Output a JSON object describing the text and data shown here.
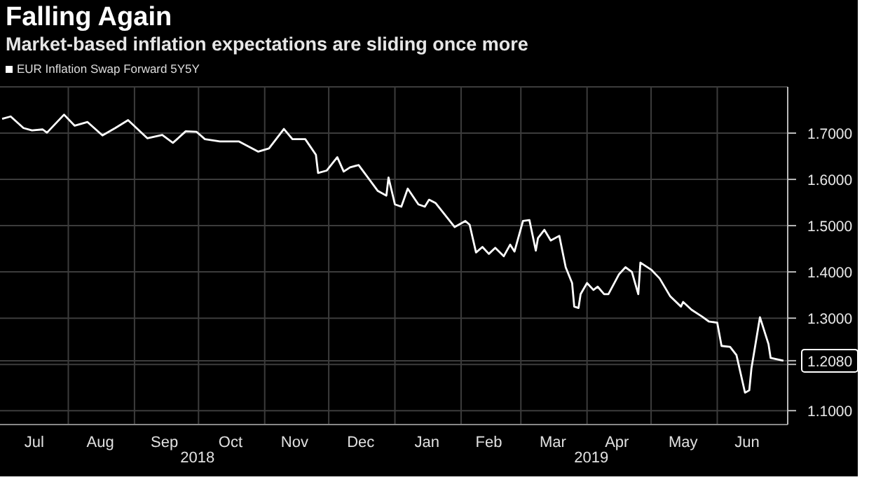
{
  "chart_data": {
    "type": "line",
    "title": "Falling Again",
    "subtitle": "Market-based inflation expectations are sliding once more",
    "legend": "top left",
    "grid": true,
    "xlim": [
      "2018-06-30",
      "2019-07-04"
    ],
    "xticks": [
      {
        "value": "2018-07-16",
        "label": "Jul"
      },
      {
        "value": "2018-08-01",
        "label": null
      },
      {
        "value": "2018-08-16",
        "label": "Aug"
      },
      {
        "value": "2018-09-01",
        "label": null
      },
      {
        "value": "2018-09-15",
        "label": "Sep"
      },
      {
        "value": "2018-10-01",
        "label": null
      },
      {
        "value": "2018-10-16",
        "label": "Oct"
      },
      {
        "value": "2018-11-01",
        "label": null
      },
      {
        "value": "2018-11-15",
        "label": "Nov"
      },
      {
        "value": "2018-12-01",
        "label": null
      },
      {
        "value": "2018-12-16",
        "label": "Dec"
      },
      {
        "value": "2019-01-01",
        "label": null
      },
      {
        "value": "2019-01-16",
        "label": "Jan"
      },
      {
        "value": "2019-02-01",
        "label": null
      },
      {
        "value": "2019-02-14",
        "label": "Feb"
      },
      {
        "value": "2019-03-01",
        "label": null
      },
      {
        "value": "2019-03-16",
        "label": "Mar"
      },
      {
        "value": "2019-04-01",
        "label": null
      },
      {
        "value": "2019-04-15",
        "label": "Apr"
      },
      {
        "value": "2019-05-01",
        "label": null
      },
      {
        "value": "2019-05-16",
        "label": "May"
      },
      {
        "value": "2019-06-01",
        "label": null
      },
      {
        "value": "2019-06-15",
        "label": "Jun"
      }
    ],
    "ylim": [
      1.07,
      1.8
    ],
    "yticks": [
      {
        "value": 1.1,
        "label": "1.1000"
      },
      {
        "value": 1.2,
        "label": null
      },
      {
        "value": 1.208,
        "label": "1.2080"
      },
      {
        "value": 1.3,
        "label": "1.3000"
      },
      {
        "value": 1.4,
        "label": "1.4000"
      },
      {
        "value": 1.5,
        "label": "1.5000"
      },
      {
        "value": 1.6,
        "label": "1.6000"
      },
      {
        "value": 1.7,
        "label": "1.7000"
      }
    ],
    "annotations": [
      "2018",
      "2019"
    ],
    "series": [
      {
        "name": "EUR Inflation Swap Forward 5Y5Y",
        "color": "#ffffff",
        "x": [
          "2018-07-01",
          "2018-07-05",
          "2018-07-11",
          "2018-07-15",
          "2018-07-20",
          "2018-07-22",
          "2018-07-30",
          "2018-08-04",
          "2018-08-10",
          "2018-08-17",
          "2018-08-23",
          "2018-08-29",
          "2018-09-07",
          "2018-09-14",
          "2018-09-19",
          "2018-09-25",
          "2018-09-30",
          "2018-10-04",
          "2018-10-11",
          "2018-10-20",
          "2018-10-29",
          "2018-11-03",
          "2018-11-10",
          "2018-11-14",
          "2018-11-20",
          "2018-11-25",
          "2018-11-26",
          "2018-11-30",
          "2018-12-05",
          "2018-12-08",
          "2018-12-11",
          "2018-12-15",
          "2018-12-24",
          "2018-12-28",
          "2018-12-29",
          "2019-01-01",
          "2019-01-04",
          "2019-01-07",
          "2019-01-12",
          "2019-01-15",
          "2019-01-17",
          "2019-01-20",
          "2019-01-29",
          "2019-02-03",
          "2019-02-05",
          "2019-02-08",
          "2019-02-11",
          "2019-02-14",
          "2019-02-17",
          "2019-02-21",
          "2019-02-24",
          "2019-02-26",
          "2019-03-02",
          "2019-03-05",
          "2019-03-08",
          "2019-03-09",
          "2019-03-12",
          "2019-03-15",
          "2019-03-19",
          "2019-03-22",
          "2019-03-25",
          "2019-03-26",
          "2019-03-28",
          "2019-03-29",
          "2019-04-01",
          "2019-04-04",
          "2019-04-06",
          "2019-04-09",
          "2019-04-11",
          "2019-04-16",
          "2019-04-19",
          "2019-04-22",
          "2019-04-25",
          "2019-04-26",
          "2019-05-01",
          "2019-05-05",
          "2019-05-10",
          "2019-05-15",
          "2019-05-16",
          "2019-05-20",
          "2019-05-25",
          "2019-05-28",
          "2019-06-01",
          "2019-06-03",
          "2019-06-07",
          "2019-06-10",
          "2019-06-14",
          "2019-06-16",
          "2019-06-17",
          "2019-06-21",
          "2019-06-25",
          "2019-06-26",
          "2019-07-02"
        ],
        "values": [
          1.731,
          1.736,
          1.711,
          1.706,
          1.708,
          1.701,
          1.74,
          1.716,
          1.724,
          1.695,
          1.711,
          1.728,
          1.689,
          1.696,
          1.679,
          1.704,
          1.703,
          1.687,
          1.682,
          1.682,
          1.66,
          1.667,
          1.709,
          1.687,
          1.687,
          1.653,
          1.614,
          1.619,
          1.648,
          1.617,
          1.626,
          1.631,
          1.575,
          1.565,
          1.604,
          1.546,
          1.541,
          1.58,
          1.546,
          1.541,
          1.556,
          1.549,
          1.497,
          1.51,
          1.502,
          1.442,
          1.454,
          1.439,
          1.452,
          1.434,
          1.459,
          1.444,
          1.51,
          1.512,
          1.446,
          1.473,
          1.491,
          1.468,
          1.478,
          1.41,
          1.376,
          1.325,
          1.322,
          1.352,
          1.376,
          1.361,
          1.368,
          1.352,
          1.352,
          1.395,
          1.41,
          1.4,
          1.352,
          1.42,
          1.405,
          1.386,
          1.347,
          1.325,
          1.335,
          1.318,
          1.303,
          1.293,
          1.29,
          1.24,
          1.238,
          1.22,
          1.139,
          1.144,
          1.191,
          1.302,
          1.244,
          1.214,
          1.208
        ]
      }
    ]
  }
}
